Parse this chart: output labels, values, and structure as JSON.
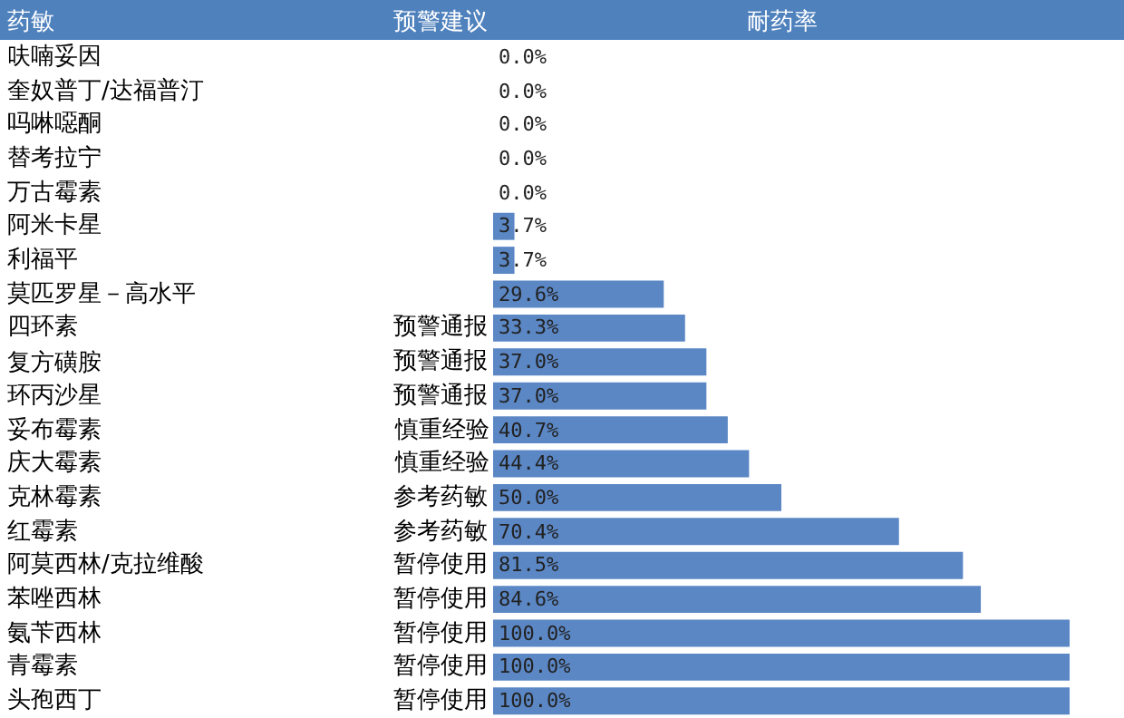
{
  "chart_data": {
    "type": "bar",
    "orientation": "horizontal",
    "ylabel": "药敏",
    "xlabel": "耐药率",
    "categories": [
      "呋喃妥因",
      "奎奴普丁/达福普汀",
      "吗啉噁酮",
      "替考拉宁",
      "万古霉素",
      "阿米卡星",
      "利福平",
      "莫匹罗星－高水平",
      "四环素",
      "复方磺胺",
      "环丙沙星",
      "妥布霉素",
      "庆大霉素",
      "克林霉素",
      "红霉素",
      "阿莫西林/克拉维酸",
      "苯唑西林",
      "氨苄西林",
      "青霉素",
      "头孢西丁"
    ],
    "values": [
      0.0,
      0.0,
      0.0,
      0.0,
      0.0,
      3.7,
      3.7,
      29.6,
      33.3,
      37.0,
      37.0,
      40.7,
      44.4,
      50.0,
      70.4,
      81.5,
      84.6,
      100.0,
      100.0,
      100.0
    ],
    "value_labels": [
      "0.0%",
      "0.0%",
      "0.0%",
      "0.0%",
      "0.0%",
      "3.7%",
      "3.7%",
      "29.6%",
      "33.3%",
      "37.0%",
      "37.0%",
      "40.7%",
      "44.4%",
      "50.0%",
      "70.4%",
      "81.5%",
      "84.6%",
      "100.0%",
      "100.0%",
      "100.0%"
    ],
    "color": "#5b87c5",
    "xlim": [
      0,
      100
    ],
    "tick_labels": false,
    "legend": false,
    "annotations": [
      "预警建议",
      "预警通报",
      "预警通报",
      "预警通报",
      "慎重经验",
      "慎重经验",
      "参考药敏",
      "参考药敏",
      "暂停使用",
      "暂停使用",
      "暂停使用",
      "暂停使用",
      "暂停使用"
    ]
  }
}
